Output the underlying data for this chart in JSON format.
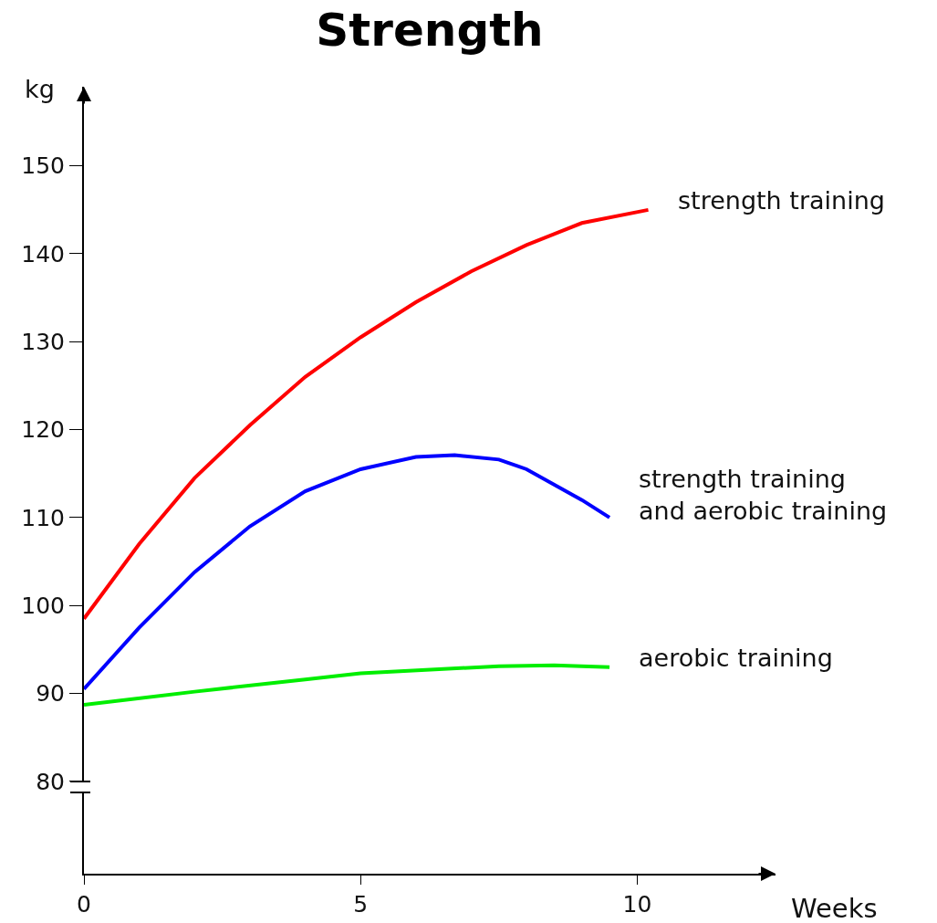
{
  "chart_data": {
    "type": "line",
    "title": "Strength",
    "xlabel": "Weeks",
    "ylabel": "kg",
    "xlim": [
      0,
      12.5
    ],
    "xticks": [
      0,
      5,
      10
    ],
    "ylim": [
      69.5,
      159
    ],
    "yticks": [
      80,
      90,
      100,
      110,
      120,
      130,
      140,
      150
    ],
    "grid": false,
    "marker": "none",
    "line_style": "solid",
    "series": [
      {
        "name": "strength training",
        "color": "#ff0000",
        "x": [
          0,
          1,
          2,
          3,
          4,
          5,
          6,
          7,
          8,
          9,
          10.2
        ],
        "values": [
          98.5,
          107,
          114.5,
          120.5,
          126,
          130.5,
          134.5,
          138,
          141,
          143.5,
          145
        ]
      },
      {
        "name": "strength training\nand aerobic training",
        "color": "#0000ff",
        "x": [
          0,
          1,
          2,
          3,
          4,
          5,
          6,
          6.7,
          7.5,
          8,
          9,
          9.5
        ],
        "values": [
          90.5,
          97.5,
          103.8,
          109,
          113,
          115.5,
          116.9,
          117.1,
          116.6,
          115.5,
          112,
          110
        ]
      },
      {
        "name": "aerobic training",
        "color": "#00ee00",
        "x": [
          0,
          2,
          4,
          5,
          7.5,
          8.5,
          9.5
        ],
        "values": [
          88.7,
          90.2,
          91.6,
          92.3,
          93.1,
          93.2,
          93
        ]
      }
    ]
  }
}
